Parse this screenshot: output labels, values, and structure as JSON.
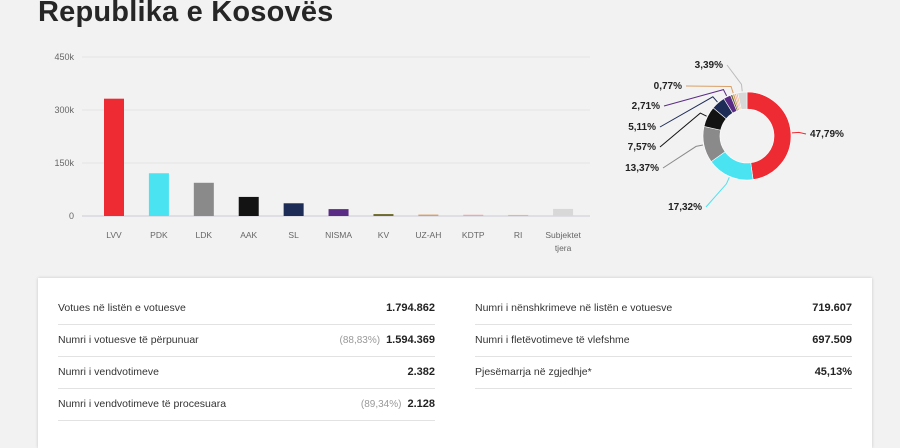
{
  "title": "Republika e Kosovës",
  "chart_data": [
    {
      "type": "bar",
      "categories": [
        "LVV",
        "PDK",
        "LDK",
        "AAK",
        "SL",
        "NISMA",
        "KV",
        "UZ-AH",
        "KDTP",
        "RI",
        "Subjektet tjera"
      ],
      "values": [
        332000,
        121000,
        94000,
        54000,
        36000,
        19500,
        5500,
        4000,
        3500,
        3000,
        20000
      ],
      "colors": [
        "#ee2a33",
        "#4ae3f2",
        "#8a8a8a",
        "#131313",
        "#1d2c57",
        "#5b2c86",
        "#6d6a2c",
        "#d9a066",
        "#f3a6a6",
        "#f0b56e",
        "#d8d8d8"
      ],
      "ylim": [
        0,
        450000
      ],
      "yticks": [
        0,
        150000,
        300000,
        450000
      ],
      "ytick_labels": [
        "0",
        "150k",
        "300k",
        "450k"
      ],
      "title": "",
      "xlabel": "",
      "ylabel": ""
    },
    {
      "type": "pie",
      "style": "donut",
      "slices": [
        {
          "label": "47,79%",
          "value": 47.79,
          "color": "#ee2a33"
        },
        {
          "label": "17,32%",
          "value": 17.32,
          "color": "#4ae3f2"
        },
        {
          "label": "13,37%",
          "value": 13.37,
          "color": "#8a8a8a"
        },
        {
          "label": "7,57%",
          "value": 7.57,
          "color": "#131313"
        },
        {
          "label": "5,11%",
          "value": 5.11,
          "color": "#1d2c57"
        },
        {
          "label": "2,71%",
          "value": 2.71,
          "color": "#5b2c86"
        },
        {
          "label": "",
          "value": 0.79,
          "color": "#6d6a2c"
        },
        {
          "label": "0,77%",
          "value": 0.77,
          "color": "#d9a066"
        },
        {
          "label": "",
          "value": 0.6,
          "color": "#f3a6a6"
        },
        {
          "label": "",
          "value": 0.58,
          "color": "#f0b56e"
        },
        {
          "label": "3,39%",
          "value": 3.39,
          "color": "#d8d8d8"
        }
      ]
    }
  ],
  "stats": {
    "left": [
      {
        "label": "Votues në listën e votuesve",
        "pct": "",
        "value": "1.794.862"
      },
      {
        "label": "Numri i votuesve të përpunuar",
        "pct": "(88,83%)",
        "value": "1.594.369"
      },
      {
        "label": "Numri i vendvotimeve",
        "pct": "",
        "value": "2.382"
      },
      {
        "label": "Numri i vendvotimeve të procesuara",
        "pct": "(89,34%)",
        "value": "2.128"
      }
    ],
    "right": [
      {
        "label": "Numri i nënshkrimeve në listën e votuesve",
        "pct": "",
        "value": "719.607"
      },
      {
        "label": "Numri i fletëvotimeve të vlefshme",
        "pct": "",
        "value": "697.509"
      },
      {
        "label": "Pjesëmarrja në zgjedhje*",
        "pct": "",
        "value": "45,13%"
      }
    ]
  }
}
